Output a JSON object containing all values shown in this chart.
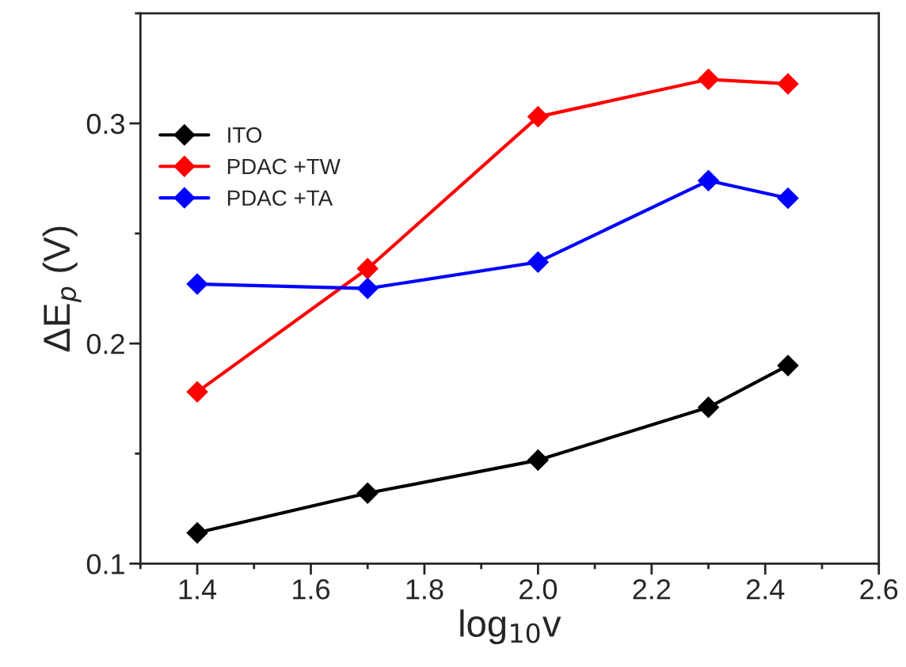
{
  "chart_data": {
    "type": "line",
    "xlabel": "log$_{10}$v",
    "ylabel": "ΔE$_{p}$ (V)",
    "x": [
      1.4,
      1.7,
      2.0,
      2.3,
      2.44
    ],
    "series": [
      {
        "name": "ITO",
        "color": "#000000",
        "values": [
          0.114,
          0.132,
          0.147,
          0.171,
          0.19
        ]
      },
      {
        "name": "PDAC +TW",
        "color": "#ff0000",
        "values": [
          0.178,
          0.234,
          0.303,
          0.32,
          0.318
        ]
      },
      {
        "name": "PDAC +TA",
        "color": "#0000ff",
        "values": [
          0.227,
          0.225,
          0.237,
          0.274,
          0.266
        ]
      }
    ],
    "xlim": [
      1.3,
      2.6
    ],
    "xticks": [
      {
        "value": 1.4,
        "label": "1.4"
      },
      {
        "value": 1.6,
        "label": "1.6"
      },
      {
        "value": 1.8,
        "label": "1.8"
      },
      {
        "value": 2.0,
        "label": "2.0"
      },
      {
        "value": 2.2,
        "label": "2.2"
      },
      {
        "value": 2.4,
        "label": "2.4"
      },
      {
        "value": 2.6,
        "label": "2.6"
      }
    ],
    "ylim": [
      0.1,
      0.35
    ],
    "yticks": [
      0.1,
      0.2,
      0.3
    ],
    "marker": "diamond",
    "line_style": "solid",
    "legend": "top left",
    "grid": false
  }
}
